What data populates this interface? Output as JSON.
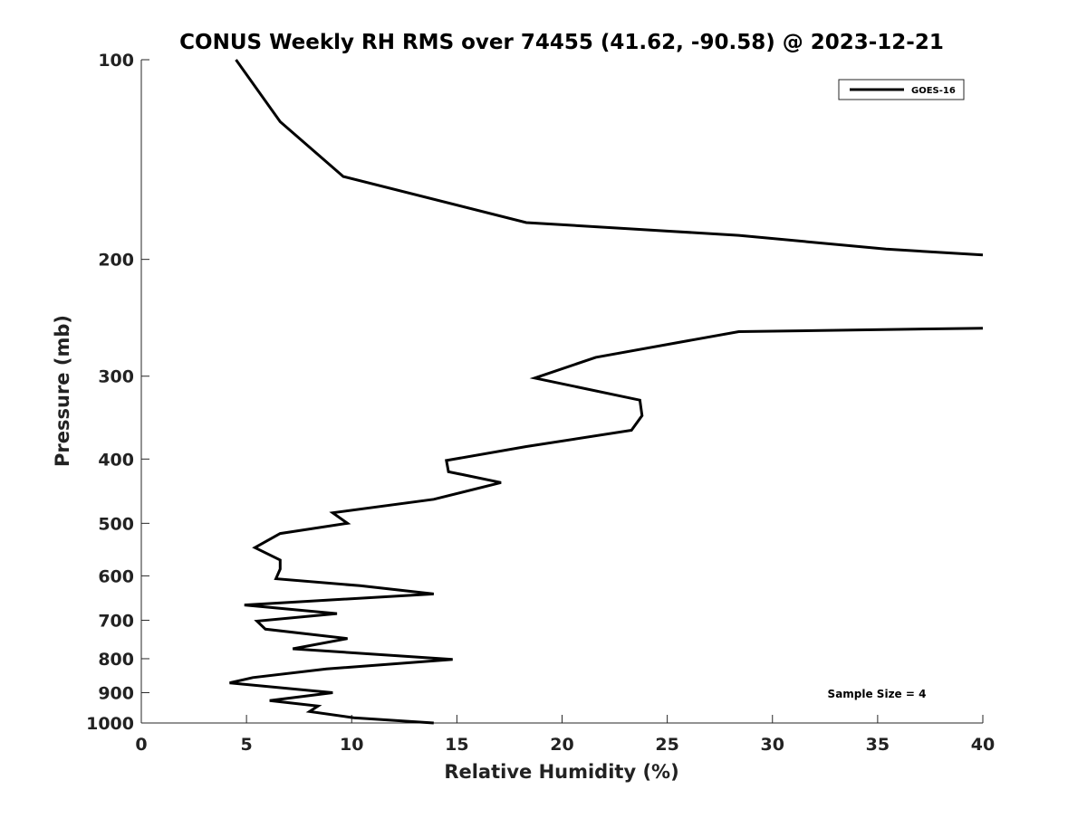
{
  "chart_data": {
    "type": "line",
    "title": "CONUS Weekly RH RMS over 74455 (41.62, -90.58) @ 2023-12-21",
    "xlabel": "Relative Humidity (%)",
    "ylabel": "Pressure (mb)",
    "xlim": [
      0,
      40
    ],
    "ylim": [
      100,
      1000
    ],
    "y_scale": "log",
    "y_reversed": true,
    "grid": false,
    "xticks": [
      0,
      5,
      10,
      15,
      20,
      25,
      30,
      35,
      40
    ],
    "yticks": [
      100,
      200,
      300,
      400,
      500,
      600,
      700,
      800,
      900,
      1000
    ],
    "legend": {
      "position": "top-right",
      "entries": [
        "GOES-16"
      ]
    },
    "annotations": [
      {
        "text": "Sample Size = 4",
        "position": "bottom-right"
      }
    ],
    "series": [
      {
        "name": "GOES-16",
        "color": "#000000",
        "segments": [
          [
            [
              4.5,
              100
            ],
            [
              6.6,
              124
            ],
            [
              9.6,
              150
            ],
            [
              18.3,
              176
            ],
            [
              28.4,
              184
            ],
            [
              35.4,
              193
            ],
            [
              40.0,
              197
            ]
          ],
          [
            [
              40.0,
              254
            ],
            [
              28.4,
              257
            ],
            [
              21.6,
              281
            ],
            [
              18.7,
              302
            ],
            [
              23.7,
              326
            ],
            [
              23.8,
              344
            ],
            [
              23.3,
              362
            ],
            [
              18.3,
              383
            ],
            [
              14.5,
              402
            ],
            [
              14.6,
              418
            ],
            [
              17.1,
              434
            ],
            [
              13.9,
              460
            ],
            [
              9.1,
              482
            ],
            [
              9.8,
              500
            ],
            [
              6.6,
              518
            ],
            [
              5.4,
              544
            ],
            [
              6.6,
              568
            ],
            [
              6.6,
              586
            ],
            [
              6.4,
              606
            ],
            [
              10.4,
              621
            ],
            [
              13.9,
              639
            ],
            [
              4.9,
              664
            ],
            [
              9.3,
              684
            ],
            [
              5.5,
              702
            ],
            [
              5.9,
              722
            ],
            [
              9.8,
              746
            ],
            [
              7.2,
              773
            ],
            [
              14.8,
              802
            ],
            [
              8.8,
              829
            ],
            [
              5.3,
              854
            ],
            [
              4.2,
              870
            ],
            [
              9.1,
              900
            ],
            [
              6.1,
              925
            ],
            [
              8.4,
              943
            ],
            [
              8.0,
              961
            ],
            [
              10.1,
              982
            ],
            [
              13.9,
              1000
            ]
          ]
        ]
      }
    ]
  }
}
